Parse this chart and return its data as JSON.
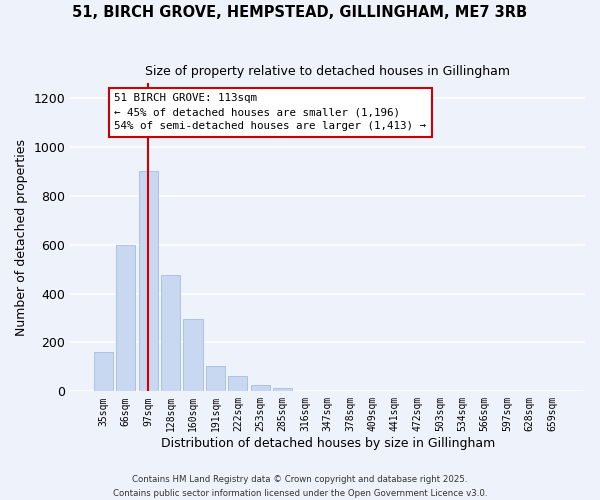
{
  "title": "51, BIRCH GROVE, HEMPSTEAD, GILLINGHAM, ME7 3RB",
  "subtitle": "Size of property relative to detached houses in Gillingham",
  "xlabel": "Distribution of detached houses by size in Gillingham",
  "ylabel": "Number of detached properties",
  "categories": [
    "35sqm",
    "66sqm",
    "97sqm",
    "128sqm",
    "160sqm",
    "191sqm",
    "222sqm",
    "253sqm",
    "285sqm",
    "316sqm",
    "347sqm",
    "378sqm",
    "409sqm",
    "441sqm",
    "472sqm",
    "503sqm",
    "534sqm",
    "566sqm",
    "597sqm",
    "628sqm",
    "659sqm"
  ],
  "values": [
    160,
    600,
    900,
    475,
    295,
    103,
    62,
    27,
    12,
    0,
    0,
    0,
    0,
    0,
    0,
    0,
    0,
    0,
    0,
    0,
    0
  ],
  "bar_color": "#c8d8f0",
  "bar_edge_color": "#9ab5d8",
  "vline_bar_index": 2,
  "vline_color": "#cc0000",
  "annotation_title": "51 BIRCH GROVE: 113sqm",
  "annotation_line1": "← 45% of detached houses are smaller (1,196)",
  "annotation_line2": "54% of semi-detached houses are larger (1,413) →",
  "annotation_box_color": "#ffffff",
  "annotation_box_edgecolor": "#cc0000",
  "ylim": [
    0,
    1260
  ],
  "yticks": [
    0,
    200,
    400,
    600,
    800,
    1000,
    1200
  ],
  "background_color": "#eef2fb",
  "plot_bg_color": "#eef2fb",
  "grid_color": "#ffffff",
  "footer1": "Contains HM Land Registry data © Crown copyright and database right 2025.",
  "footer2": "Contains public sector information licensed under the Open Government Licence v3.0."
}
